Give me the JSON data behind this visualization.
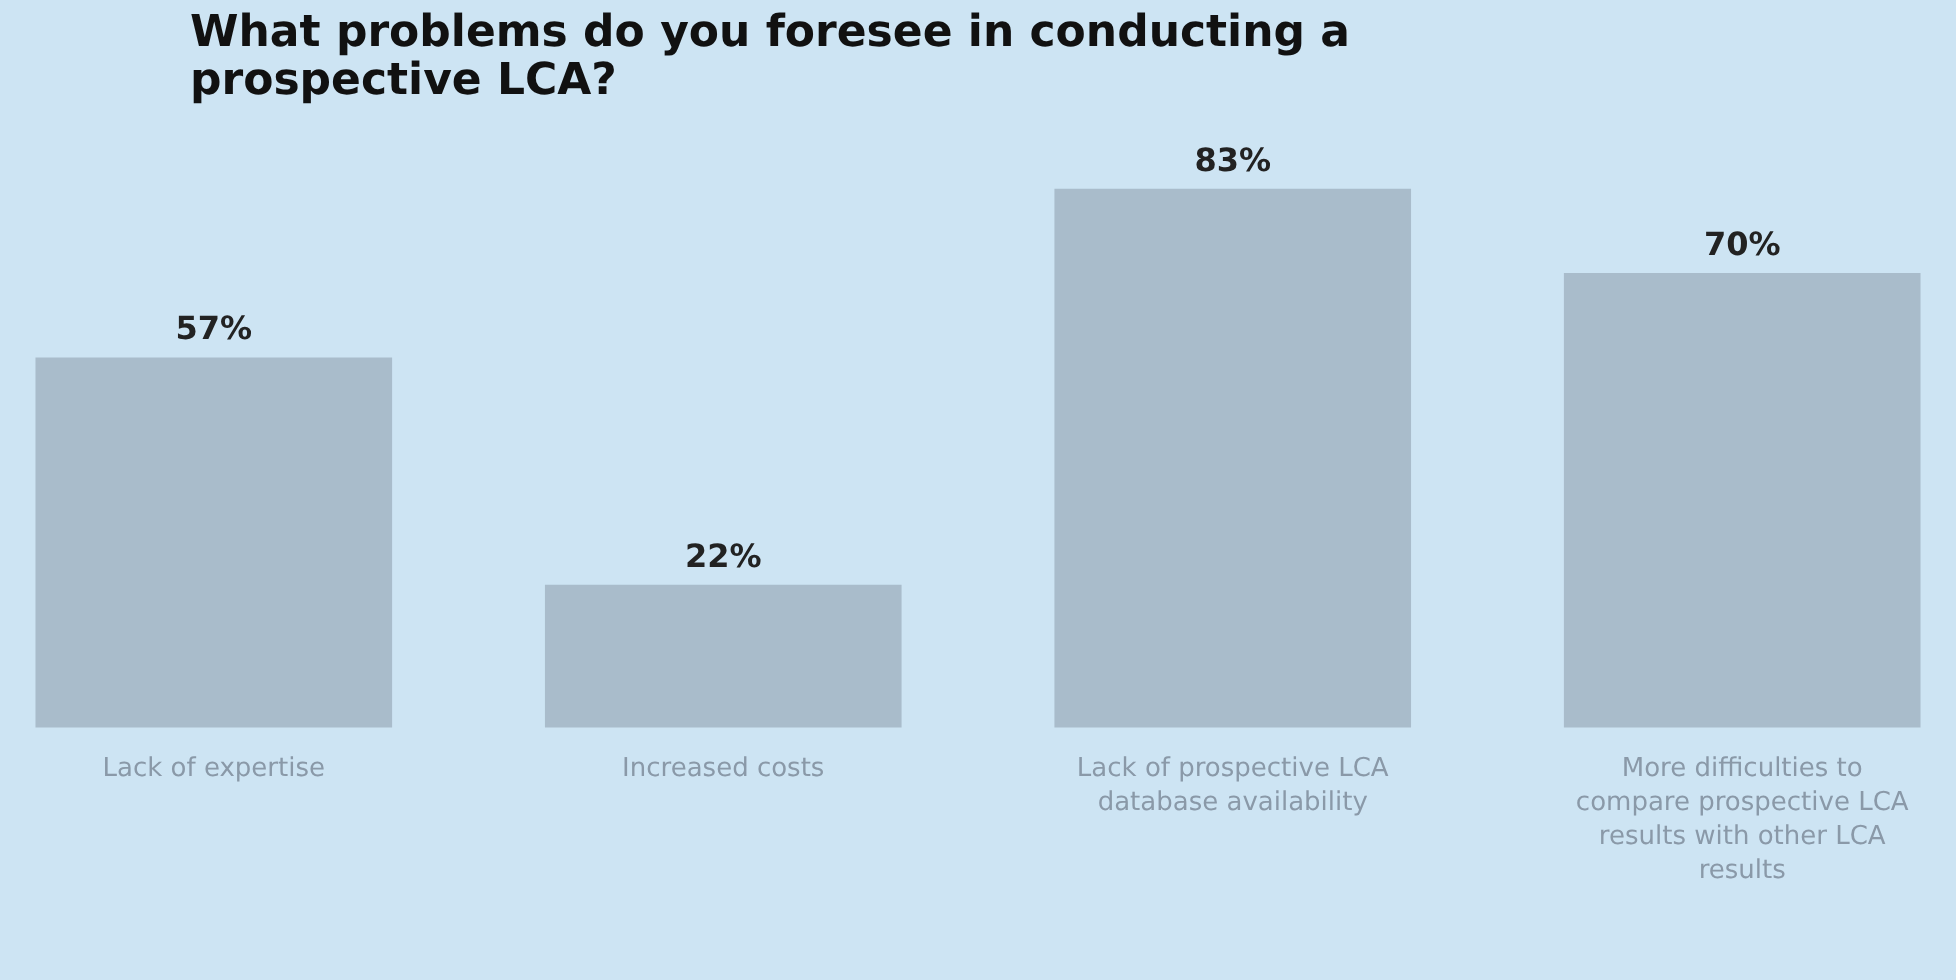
{
  "chart_data": {
    "type": "bar",
    "title": "What problems do you foresee in conducting a prospective LCA?",
    "categories": [
      "Lack of expertise",
      "Increased costs",
      "Lack of prospective LCA database availability",
      "More difficulties to compare prospective LCA results with other LCA results"
    ],
    "values": [
      57,
      22,
      83,
      70
    ],
    "color": "#a9bccb",
    "value_labels": [
      "57%",
      "22%",
      "83%",
      "70%"
    ]
  }
}
